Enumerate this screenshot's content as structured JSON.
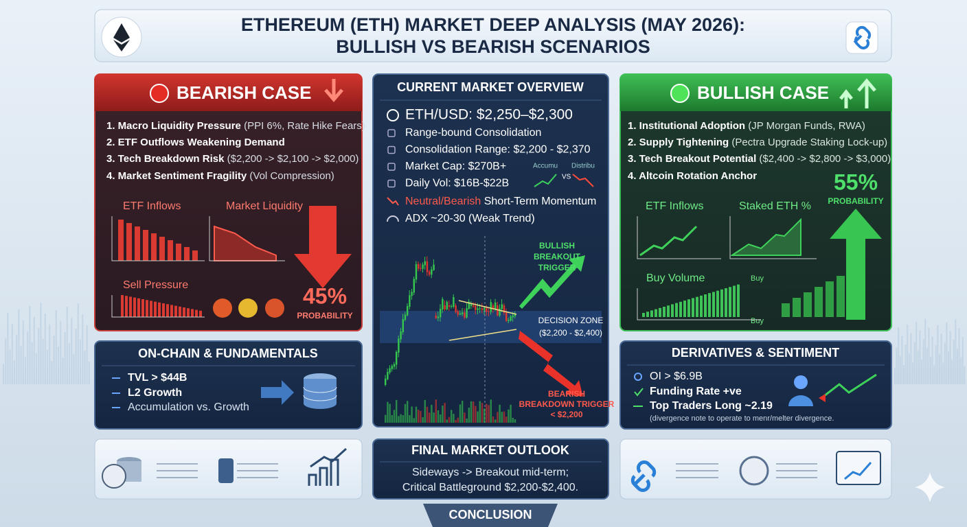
{
  "header": {
    "title_lines": [
      "ETHEREUM (ETH) MARKET DEEP ANALYSIS (MAY 2026):",
      "BULLISH VS BEARISH SCENARIOS"
    ]
  },
  "bearish": {
    "title": "BEARISH CASE",
    "items": [
      {
        "head": "1. Macro Liquidity Pressure",
        "detail": " (PPI 6%, Rate Hike Fears)"
      },
      {
        "head": "2. ETF Outflows Weakening Demand",
        "detail": ""
      },
      {
        "head": "3. Tech Breakdown Risk",
        "detail": " ($2,200 -> $2,100 -> $2,000)"
      },
      {
        "head": "4. Market Sentiment Fragility",
        "detail": " (Vol Compression)"
      }
    ],
    "charts": [
      "ETF Inflows",
      "Market Liquidity",
      "Sell Pressure"
    ],
    "probability": "45%",
    "probability_label": "PROBABILITY"
  },
  "overview": {
    "title": "CURRENT MARKET OVERVIEW",
    "price": "ETH/USD: $2,250–$2,300",
    "items": [
      "Range-bound Consolidation",
      "Consolidation Range: $2,200 - $2,370",
      "Market Cap: $270B+",
      "Daily Vol: $16B-$22B"
    ],
    "momentum_head": "Neutral/Bearish",
    "momentum_rest": " Short-Term Momentum",
    "adx": "ADX ~20-30 (Weak Trend)",
    "mini": [
      "Accumu",
      "VS",
      "Distribu"
    ],
    "bull_trigger": [
      "BULLISH",
      "BREAKOUT",
      "TRIGGER"
    ],
    "zone": [
      "DECISION ZONE",
      "($2,200 - $2,400)"
    ],
    "bear_trigger": [
      "BEARISH",
      "BREAKDOWN TRIGGER",
      "< $2,200"
    ]
  },
  "bullish": {
    "title": "BULLISH CASE",
    "items": [
      {
        "head": "1. Institutional Adoption",
        "detail": " (JP Morgan Funds, RWA)"
      },
      {
        "head": "2. Supply Tightening",
        "detail": " (Pectra Upgrade Staking Lock-up)"
      },
      {
        "head": "3. Tech Breakout Potential",
        "detail": " ($2,400 -> $2,800 -> $3,000)"
      },
      {
        "head": "4. Altcoin Rotation Anchor",
        "detail": ""
      }
    ],
    "charts": [
      "ETF Inflows",
      "Staked ETH %",
      "Buy Volume"
    ],
    "buy_labels": [
      "Buy",
      "Buy"
    ],
    "probability": "55%",
    "probability_label": "PROBABILITY"
  },
  "onchain": {
    "title": "ON-CHAIN & FUNDAMENTALS",
    "items": [
      "TVL > $44B",
      "L2 Growth",
      "Accumulation vs. Growth"
    ]
  },
  "derivatives": {
    "title": "DERIVATIVES & SENTIMENT",
    "items": [
      "OI > $6.9B",
      "Funding Rate +ve",
      "Top Traders Long ~2.19"
    ],
    "note": "(divergence note to operate to menr/melter divergence."
  },
  "final": {
    "title": "FINAL MARKET OUTLOOK",
    "lines": [
      "Sideways -> Breakout mid-term;",
      "Critical Battleground $2,200-$2,400."
    ]
  },
  "conclusion": "CONCLUSION"
}
